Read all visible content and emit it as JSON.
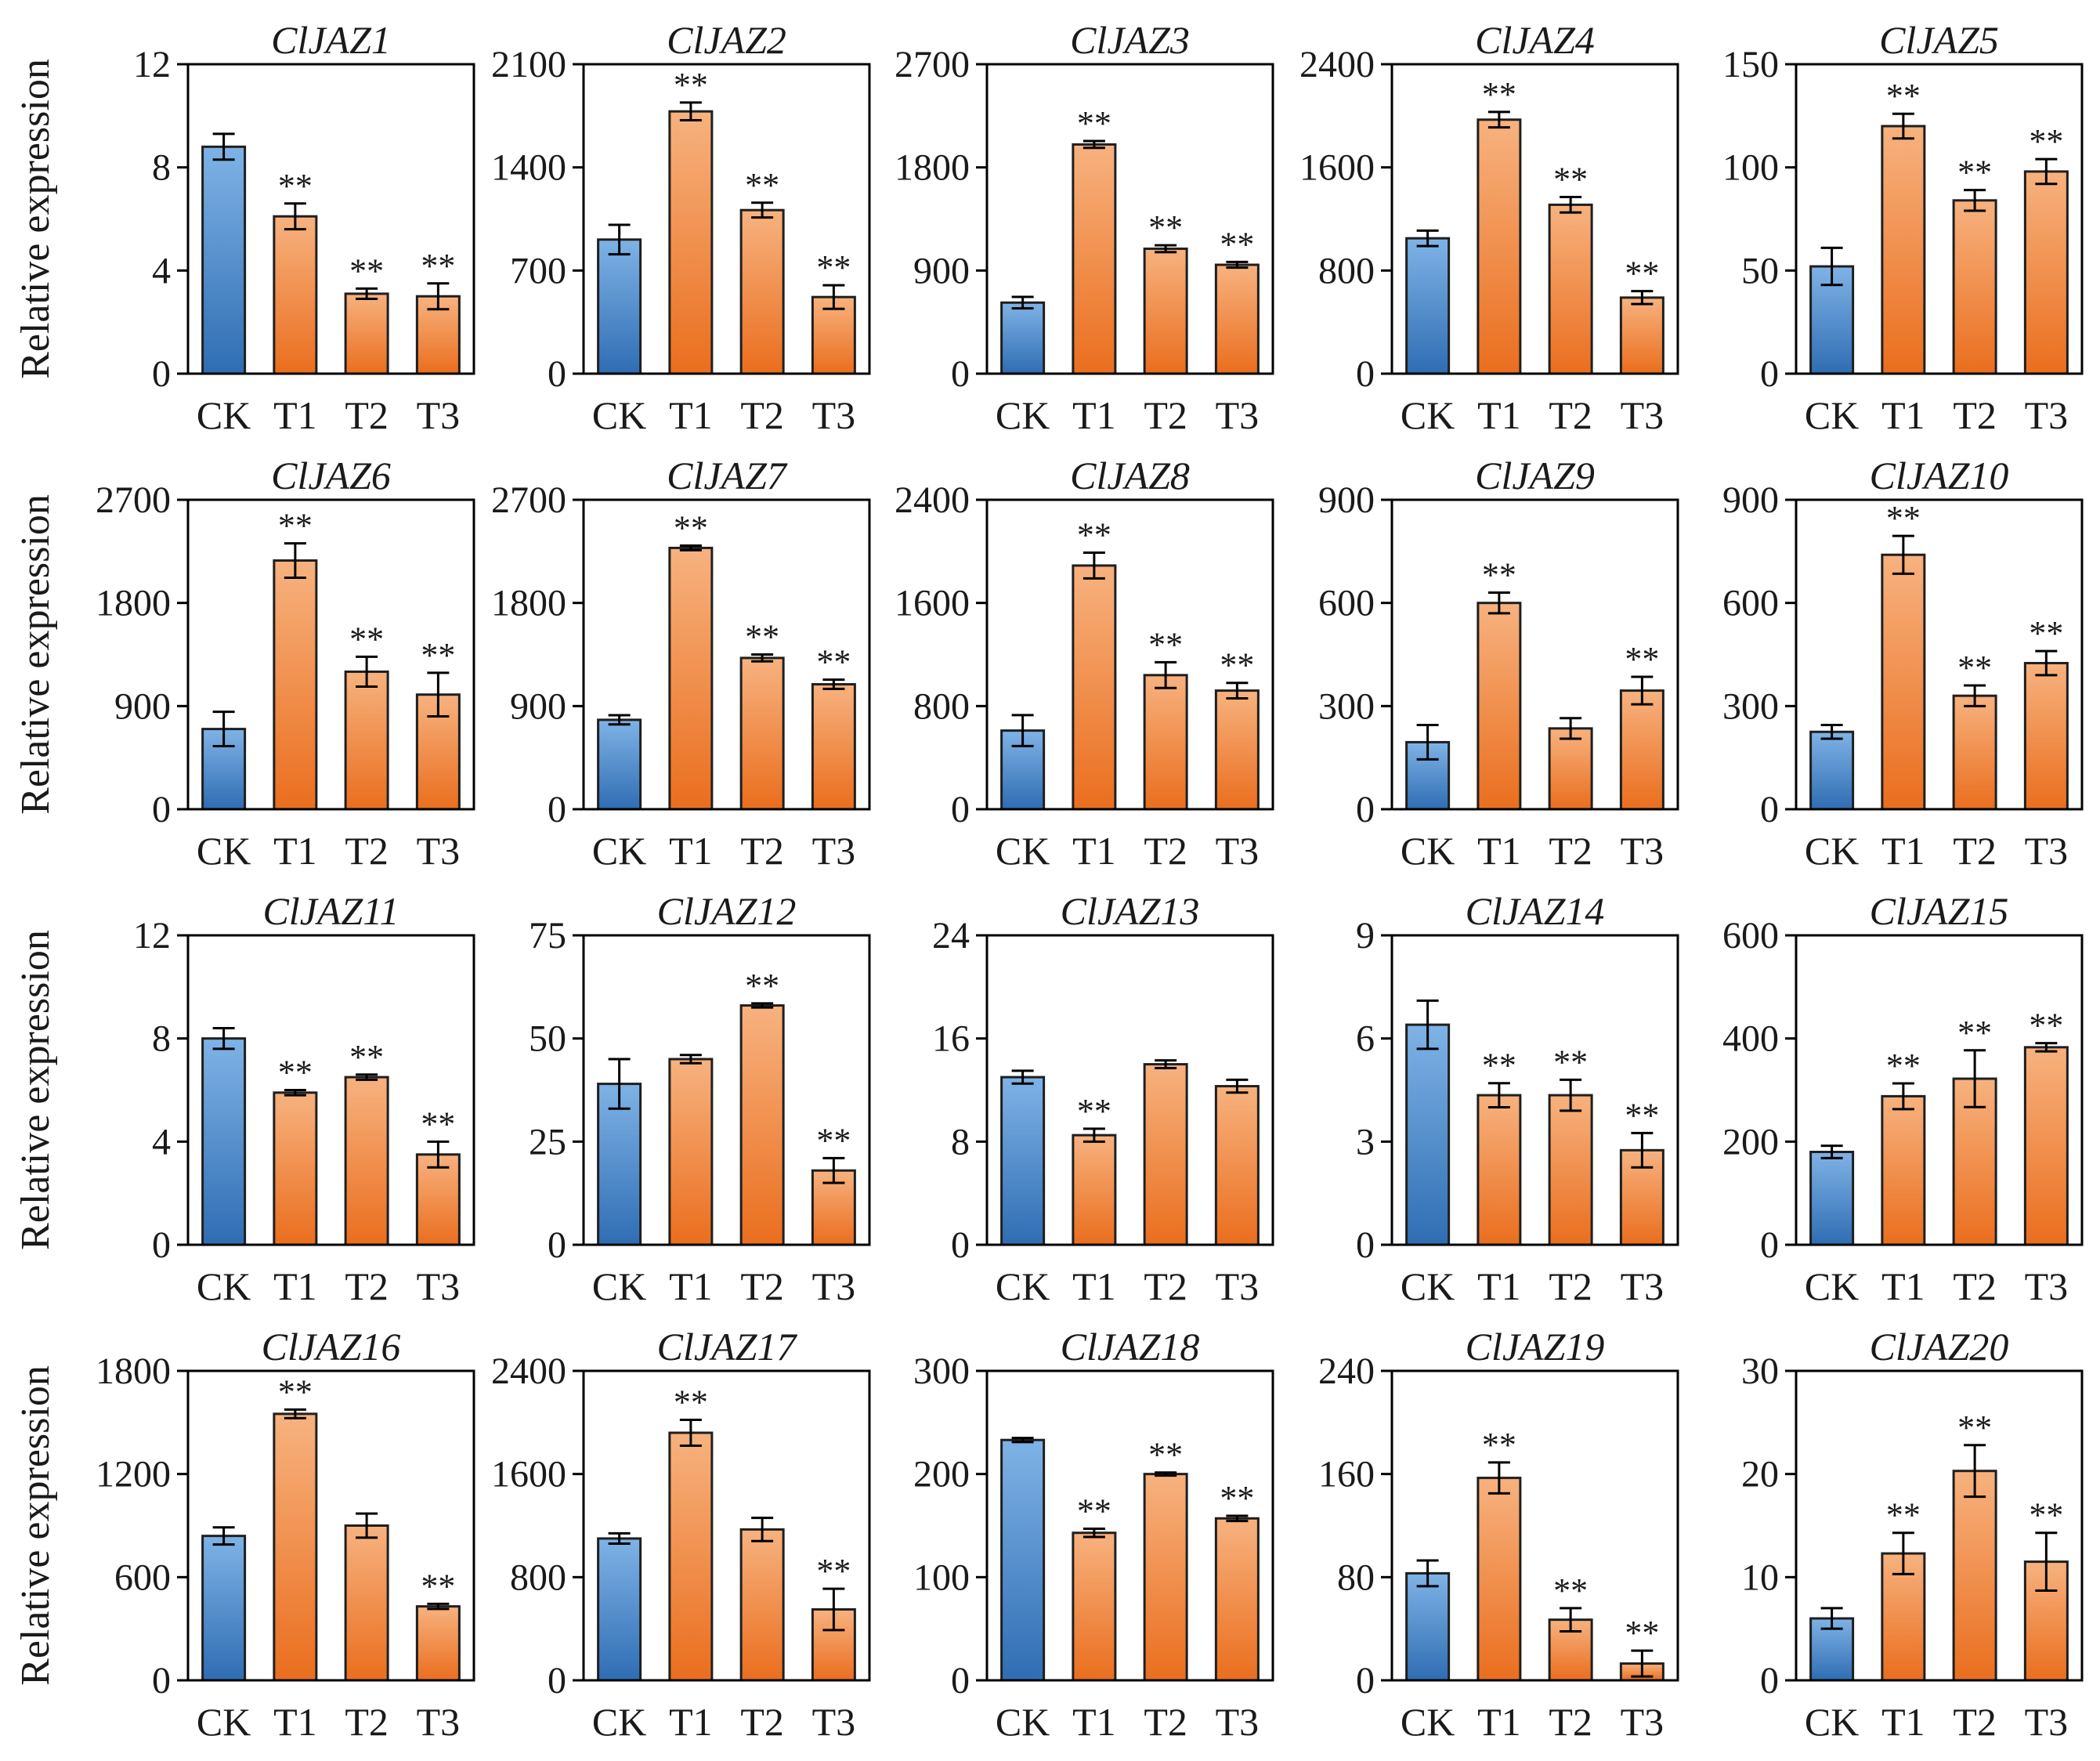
{
  "colors": {
    "ck_top": "#7fb3e6",
    "ck_bottom": "#2f6db3",
    "t_top": "#f7b27f",
    "t_bottom": "#ea6e1e"
  },
  "y_axis_label": "Relative expression",
  "chart_data": [
    {
      "type": "bar",
      "title": "ClJAZ1",
      "categories": [
        "CK",
        "T1",
        "T2",
        "T3"
      ],
      "values": [
        8.8,
        6.1,
        3.1,
        3.0
      ],
      "errors": [
        0.5,
        0.5,
        0.2,
        0.5
      ],
      "significance": [
        "",
        "**",
        "**",
        "**"
      ],
      "ylim": [
        0,
        12
      ],
      "yticks": [
        0,
        4,
        8,
        12
      ],
      "ylabel": "Relative expression"
    },
    {
      "type": "bar",
      "title": "ClJAZ2",
      "categories": [
        "CK",
        "T1",
        "T2",
        "T3"
      ],
      "values": [
        910,
        1780,
        1110,
        520
      ],
      "errors": [
        100,
        60,
        50,
        80
      ],
      "significance": [
        "",
        "**",
        "**",
        "**"
      ],
      "ylim": [
        0,
        2100
      ],
      "yticks": [
        0,
        700,
        1400,
        2100
      ],
      "ylabel": ""
    },
    {
      "type": "bar",
      "title": "ClJAZ3",
      "categories": [
        "CK",
        "T1",
        "T2",
        "T3"
      ],
      "values": [
        620,
        2000,
        1090,
        950
      ],
      "errors": [
        50,
        30,
        30,
        25
      ],
      "significance": [
        "",
        "**",
        "**",
        "**"
      ],
      "ylim": [
        0,
        2700
      ],
      "yticks": [
        0,
        900,
        1800,
        2700
      ],
      "ylabel": ""
    },
    {
      "type": "bar",
      "title": "ClJAZ4",
      "categories": [
        "CK",
        "T1",
        "T2",
        "T3"
      ],
      "values": [
        1050,
        1970,
        1310,
        590
      ],
      "errors": [
        60,
        60,
        60,
        50
      ],
      "significance": [
        "",
        "**",
        "**",
        "**"
      ],
      "ylim": [
        0,
        2400
      ],
      "yticks": [
        0,
        800,
        1600,
        2400
      ],
      "ylabel": ""
    },
    {
      "type": "bar",
      "title": "ClJAZ5",
      "categories": [
        "CK",
        "T1",
        "T2",
        "T3"
      ],
      "values": [
        52,
        120,
        84,
        98
      ],
      "errors": [
        9,
        6,
        5,
        6
      ],
      "significance": [
        "",
        "**",
        "**",
        "**"
      ],
      "ylim": [
        0,
        150
      ],
      "yticks": [
        0,
        50,
        100,
        150
      ],
      "ylabel": ""
    },
    {
      "type": "bar",
      "title": "ClJAZ6",
      "categories": [
        "CK",
        "T1",
        "T2",
        "T3"
      ],
      "values": [
        700,
        2170,
        1200,
        1000
      ],
      "errors": [
        150,
        150,
        130,
        190
      ],
      "significance": [
        "",
        "**",
        "**",
        "**"
      ],
      "ylim": [
        0,
        2700
      ],
      "yticks": [
        0,
        900,
        1800,
        2700
      ],
      "ylabel": "Relative expression"
    },
    {
      "type": "bar",
      "title": "ClJAZ7",
      "categories": [
        "CK",
        "T1",
        "T2",
        "T3"
      ],
      "values": [
        780,
        2280,
        1320,
        1090
      ],
      "errors": [
        40,
        20,
        30,
        40
      ],
      "significance": [
        "",
        "**",
        "**",
        "**"
      ],
      "ylim": [
        0,
        2700
      ],
      "yticks": [
        0,
        900,
        1800,
        2700
      ],
      "ylabel": ""
    },
    {
      "type": "bar",
      "title": "ClJAZ8",
      "categories": [
        "CK",
        "T1",
        "T2",
        "T3"
      ],
      "values": [
        610,
        1890,
        1040,
        920
      ],
      "errors": [
        120,
        100,
        100,
        60
      ],
      "significance": [
        "",
        "**",
        "**",
        "**"
      ],
      "ylim": [
        0,
        2400
      ],
      "yticks": [
        0,
        800,
        1600,
        2400
      ],
      "ylabel": ""
    },
    {
      "type": "bar",
      "title": "ClJAZ9",
      "categories": [
        "CK",
        "T1",
        "T2",
        "T3"
      ],
      "values": [
        195,
        600,
        235,
        345
      ],
      "errors": [
        50,
        30,
        30,
        40
      ],
      "significance": [
        "",
        "**",
        "",
        "**"
      ],
      "ylim": [
        0,
        900
      ],
      "yticks": [
        0,
        300,
        600,
        900
      ],
      "ylabel": ""
    },
    {
      "type": "bar",
      "title": "ClJAZ10",
      "categories": [
        "CK",
        "T1",
        "T2",
        "T3"
      ],
      "values": [
        225,
        740,
        330,
        425
      ],
      "errors": [
        20,
        55,
        30,
        35
      ],
      "significance": [
        "",
        "**",
        "**",
        "**"
      ],
      "ylim": [
        0,
        900
      ],
      "yticks": [
        0,
        300,
        600,
        900
      ],
      "ylabel": ""
    },
    {
      "type": "bar",
      "title": "ClJAZ11",
      "categories": [
        "CK",
        "T1",
        "T2",
        "T3"
      ],
      "values": [
        8.0,
        5.9,
        6.5,
        3.5
      ],
      "errors": [
        0.4,
        0.1,
        0.1,
        0.5
      ],
      "significance": [
        "",
        "**",
        "**",
        "**"
      ],
      "ylim": [
        0,
        12
      ],
      "yticks": [
        0,
        4,
        8,
        12
      ],
      "ylabel": "Relative expression"
    },
    {
      "type": "bar",
      "title": "ClJAZ12",
      "categories": [
        "CK",
        "T1",
        "T2",
        "T3"
      ],
      "values": [
        39,
        45,
        58,
        18
      ],
      "errors": [
        6,
        1,
        0.5,
        3
      ],
      "significance": [
        "",
        "",
        "**",
        "**"
      ],
      "ylim": [
        0,
        75
      ],
      "yticks": [
        0,
        25,
        50,
        75
      ],
      "ylabel": ""
    },
    {
      "type": "bar",
      "title": "ClJAZ13",
      "categories": [
        "CK",
        "T1",
        "T2",
        "T3"
      ],
      "values": [
        13,
        8.5,
        14,
        12.3
      ],
      "errors": [
        0.5,
        0.5,
        0.3,
        0.5
      ],
      "significance": [
        "",
        "**",
        "",
        ""
      ],
      "ylim": [
        0,
        24
      ],
      "yticks": [
        0,
        8,
        16,
        24
      ],
      "ylabel": ""
    },
    {
      "type": "bar",
      "title": "ClJAZ14",
      "categories": [
        "CK",
        "T1",
        "T2",
        "T3"
      ],
      "values": [
        6.4,
        4.35,
        4.35,
        2.75
      ],
      "errors": [
        0.7,
        0.35,
        0.45,
        0.5
      ],
      "significance": [
        "",
        "**",
        "**",
        "**"
      ],
      "ylim": [
        0,
        9
      ],
      "yticks": [
        0,
        3,
        6,
        9
      ],
      "ylabel": ""
    },
    {
      "type": "bar",
      "title": "ClJAZ15",
      "categories": [
        "CK",
        "T1",
        "T2",
        "T3"
      ],
      "values": [
        180,
        288,
        322,
        383
      ],
      "errors": [
        12,
        25,
        55,
        8
      ],
      "significance": [
        "",
        "**",
        "**",
        "**"
      ],
      "ylim": [
        0,
        600
      ],
      "yticks": [
        0,
        200,
        400,
        600
      ],
      "ylabel": ""
    },
    {
      "type": "bar",
      "title": "ClJAZ16",
      "categories": [
        "CK",
        "T1",
        "T2",
        "T3"
      ],
      "values": [
        840,
        1550,
        900,
        430
      ],
      "errors": [
        50,
        25,
        70,
        15
      ],
      "significance": [
        "",
        "**",
        "",
        "**"
      ],
      "ylim": [
        0,
        1800
      ],
      "yticks": [
        0,
        600,
        1200,
        1800
      ],
      "ylabel": "Relative expression"
    },
    {
      "type": "bar",
      "title": "ClJAZ17",
      "categories": [
        "CK",
        "T1",
        "T2",
        "T3"
      ],
      "values": [
        1100,
        1920,
        1170,
        550
      ],
      "errors": [
        40,
        100,
        90,
        160
      ],
      "significance": [
        "",
        "**",
        "",
        "**"
      ],
      "ylim": [
        0,
        2400
      ],
      "yticks": [
        0,
        800,
        1600,
        2400
      ],
      "ylabel": ""
    },
    {
      "type": "bar",
      "title": "ClJAZ18",
      "categories": [
        "CK",
        "T1",
        "T2",
        "T3"
      ],
      "values": [
        233,
        143,
        200,
        157
      ],
      "errors": [
        2,
        4,
        1.5,
        2.5
      ],
      "significance": [
        "",
        "**",
        "**",
        "**"
      ],
      "ylim": [
        0,
        300
      ],
      "yticks": [
        0,
        100,
        200,
        300
      ],
      "ylabel": ""
    },
    {
      "type": "bar",
      "title": "ClJAZ19",
      "categories": [
        "CK",
        "T1",
        "T2",
        "T3"
      ],
      "values": [
        83,
        157,
        47,
        13
      ],
      "errors": [
        10,
        12,
        9,
        10
      ],
      "significance": [
        "",
        "**",
        "**",
        "**"
      ],
      "ylim": [
        0,
        240
      ],
      "yticks": [
        0,
        80,
        160,
        240
      ],
      "ylabel": ""
    },
    {
      "type": "bar",
      "title": "ClJAZ20",
      "categories": [
        "CK",
        "T1",
        "T2",
        "T3"
      ],
      "values": [
        6.0,
        12.3,
        20.3,
        11.5
      ],
      "errors": [
        1.0,
        2.0,
        2.5,
        2.8
      ],
      "significance": [
        "",
        "**",
        "**",
        "**"
      ],
      "ylim": [
        0,
        30
      ],
      "yticks": [
        0,
        10,
        20,
        30
      ],
      "ylabel": ""
    }
  ]
}
